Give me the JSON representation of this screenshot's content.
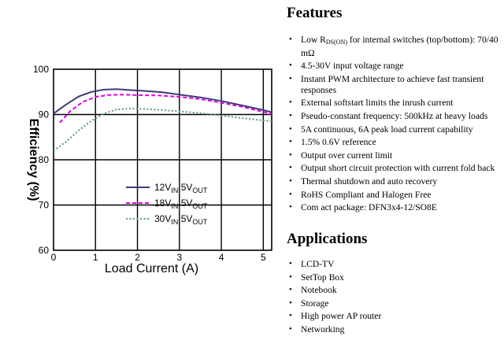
{
  "chart_data": {
    "type": "line",
    "xlabel": "Load Current (A)",
    "ylabel": "Efficiency (%)",
    "xlim": [
      0,
      5.2
    ],
    "ylim": [
      60,
      100
    ],
    "xticks": [
      "0",
      "1",
      "2",
      "3",
      "4",
      "5"
    ],
    "yticks": [
      "100",
      "90",
      "80",
      "70",
      "60"
    ],
    "grid": true,
    "legend_position": "center-left",
    "series": [
      {
        "name": "12V_IN,5V_OUT",
        "label_main": "12V",
        "label_sub1": "IN",
        "label_mid": ",5V",
        "label_sub2": "OUT",
        "color": "#3c3c78",
        "dash": "solid",
        "x": [
          0,
          0.3,
          0.6,
          0.9,
          1.2,
          1.5,
          1.8,
          2.2,
          2.6,
          3.0,
          3.5,
          4.0,
          4.5,
          5.0,
          5.2
        ],
        "y": [
          90.2,
          92.2,
          94.0,
          95.0,
          95.5,
          95.6,
          95.4,
          95.2,
          94.9,
          94.4,
          93.8,
          93.0,
          92.0,
          91.0,
          90.5
        ]
      },
      {
        "name": "18V_IN,5V_OUT",
        "label_main": "18V",
        "label_sub1": "IN",
        "label_mid": ",5V",
        "label_sub2": "OUT",
        "color": "#e000e0",
        "dash": "dashed",
        "x": [
          0.15,
          0.4,
          0.7,
          1.0,
          1.3,
          1.6,
          2.0,
          2.5,
          3.0,
          3.5,
          4.0,
          4.5,
          5.0,
          5.2
        ],
        "y": [
          88.2,
          90.8,
          92.8,
          93.9,
          94.3,
          94.4,
          94.3,
          94.2,
          93.9,
          93.4,
          92.6,
          91.7,
          90.6,
          90.1
        ]
      },
      {
        "name": "30V_IN,5V_OUT",
        "label_main": "30V",
        "label_sub1": "IN",
        "label_mid": ",5V",
        "label_sub2": "OUT",
        "color": "#5a9a70",
        "dash": "dotted",
        "x": [
          0,
          0.3,
          0.6,
          0.9,
          1.2,
          1.5,
          1.8,
          2.2,
          2.6,
          3.0,
          3.5,
          4.0,
          4.5,
          5.0,
          5.2
        ],
        "y": [
          82.0,
          84.0,
          86.5,
          88.6,
          90.2,
          91.1,
          91.3,
          91.2,
          91.0,
          90.7,
          90.3,
          89.8,
          89.2,
          88.7,
          88.5
        ]
      }
    ]
  },
  "features": {
    "title": "Features",
    "items": [
      {
        "pre": "Low R",
        "sub": "DS(ON)",
        "post": " for internal switches (top/bottom): 70/40 mΩ"
      },
      {
        "text": "4.5-30V input voltage range"
      },
      {
        "text": "Instant PWM architecture to achieve fast transient responses"
      },
      {
        "text": "External softstart limits the inrush current"
      },
      {
        "text": "Pseudo-constant frequency: 500kHz at heavy loads"
      },
      {
        "text": "5A continuous, 6A peak load current capability"
      },
      {
        "text": "1.5% 0.6V reference"
      },
      {
        "text": "Output over current limit"
      },
      {
        "text": "Output short circuit protection with current fold back"
      },
      {
        "text": "Thermal shutdown and auto recovery"
      },
      {
        "text": "RoHS Compliant and Halogen Free"
      },
      {
        "text": "Com  act package: DFN3x4-12/SO8E"
      }
    ]
  },
  "applications": {
    "title": "Applications",
    "items": [
      "LCD-TV",
      "SetTop Box",
      "Notebook",
      "Storage",
      "High power AP router",
      "Networking"
    ]
  }
}
